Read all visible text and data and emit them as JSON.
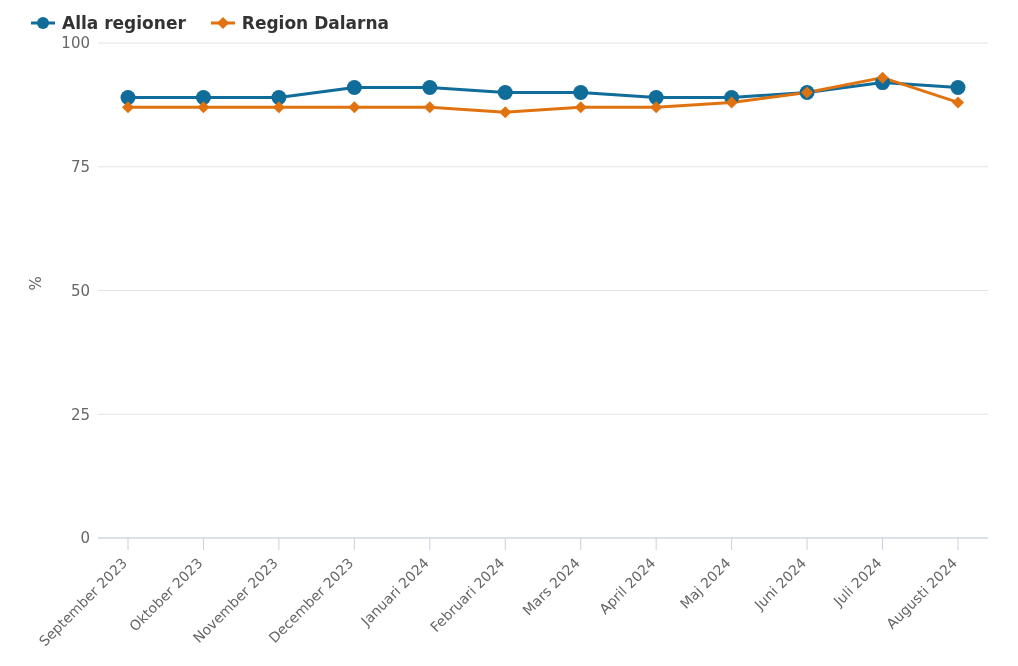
{
  "chart_data": {
    "type": "line",
    "ylabel": "%",
    "categories": [
      "September 2023",
      "Oktober 2023",
      "November 2023",
      "December 2023",
      "Januari 2024",
      "Februari 2024",
      "Mars 2024",
      "April 2024",
      "Maj 2024",
      "Juni 2024",
      "Juli 2024",
      "Augusti 2024"
    ],
    "series": [
      {
        "name": "Alla regioner",
        "color": "#106c98",
        "marker": "circle",
        "values": [
          89,
          89,
          89,
          91,
          91,
          90,
          90,
          89,
          89,
          90,
          92,
          91
        ]
      },
      {
        "name": "Region Dalarna",
        "color": "#e0730f",
        "marker": "diamond",
        "values": [
          87,
          87,
          87,
          87,
          87,
          86,
          87,
          87,
          88,
          90,
          93,
          88
        ]
      }
    ],
    "ylim": [
      0,
      100
    ],
    "yticks": [
      0,
      25,
      50,
      75,
      100
    ],
    "grid": "y",
    "legend": "top left"
  }
}
